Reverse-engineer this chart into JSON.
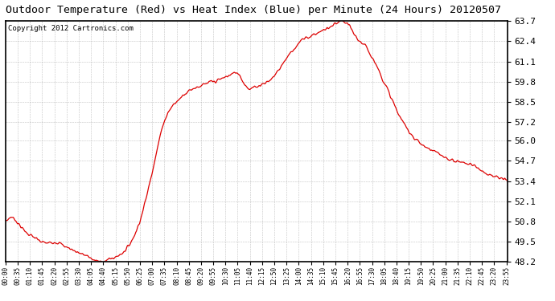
{
  "title": "Outdoor Temperature (Red) vs Heat Index (Blue) per Minute (24 Hours) 20120507",
  "copyright": "Copyright 2012 Cartronics.com",
  "yticks": [
    48.2,
    49.5,
    50.8,
    52.1,
    53.4,
    54.7,
    56.0,
    57.2,
    58.5,
    59.8,
    61.1,
    62.4,
    63.7
  ],
  "ymin": 48.2,
  "ymax": 63.7,
  "line_color": "#dd0000",
  "bg_color": "#ffffff",
  "grid_color": "#999999",
  "title_fontsize": 9.5,
  "copyright_fontsize": 6.5,
  "ytick_fontsize": 8,
  "xtick_fontsize": 5.5,
  "ctrl_points": [
    [
      0,
      50.8
    ],
    [
      15,
      51.1
    ],
    [
      25,
      51.0
    ],
    [
      35,
      50.7
    ],
    [
      50,
      50.3
    ],
    [
      65,
      50.0
    ],
    [
      80,
      49.8
    ],
    [
      100,
      49.5
    ],
    [
      120,
      49.4
    ],
    [
      140,
      49.5
    ],
    [
      155,
      49.4
    ],
    [
      170,
      49.2
    ],
    [
      190,
      49.0
    ],
    [
      210,
      48.8
    ],
    [
      240,
      48.5
    ],
    [
      255,
      48.3
    ],
    [
      265,
      48.25
    ],
    [
      270,
      48.2
    ],
    [
      280,
      48.25
    ],
    [
      290,
      48.3
    ],
    [
      300,
      48.4
    ],
    [
      315,
      48.5
    ],
    [
      330,
      48.7
    ],
    [
      345,
      49.0
    ],
    [
      360,
      49.5
    ],
    [
      375,
      50.2
    ],
    [
      390,
      51.2
    ],
    [
      405,
      52.5
    ],
    [
      420,
      54.0
    ],
    [
      435,
      55.5
    ],
    [
      450,
      57.0
    ],
    [
      465,
      57.8
    ],
    [
      480,
      58.3
    ],
    [
      495,
      58.6
    ],
    [
      510,
      59.0
    ],
    [
      525,
      59.2
    ],
    [
      540,
      59.4
    ],
    [
      555,
      59.5
    ],
    [
      570,
      59.6
    ],
    [
      580,
      59.7
    ],
    [
      590,
      59.8
    ],
    [
      600,
      59.8
    ],
    [
      610,
      59.9
    ],
    [
      620,
      60.0
    ],
    [
      630,
      60.1
    ],
    [
      640,
      60.2
    ],
    [
      650,
      60.3
    ],
    [
      660,
      60.4
    ],
    [
      670,
      60.3
    ],
    [
      680,
      59.8
    ],
    [
      690,
      59.5
    ],
    [
      700,
      59.3
    ],
    [
      710,
      59.4
    ],
    [
      720,
      59.5
    ],
    [
      730,
      59.6
    ],
    [
      740,
      59.7
    ],
    [
      750,
      59.8
    ],
    [
      760,
      59.9
    ],
    [
      770,
      60.2
    ],
    [
      790,
      60.8
    ],
    [
      810,
      61.5
    ],
    [
      830,
      62.0
    ],
    [
      850,
      62.5
    ],
    [
      870,
      62.7
    ],
    [
      890,
      62.9
    ],
    [
      910,
      63.1
    ],
    [
      930,
      63.3
    ],
    [
      945,
      63.5
    ],
    [
      955,
      63.6
    ],
    [
      962,
      63.7
    ],
    [
      970,
      63.65
    ],
    [
      980,
      63.5
    ],
    [
      990,
      63.2
    ],
    [
      1000,
      62.8
    ],
    [
      1010,
      62.5
    ],
    [
      1020,
      62.3
    ],
    [
      1030,
      62.1
    ],
    [
      1040,
      61.8
    ],
    [
      1055,
      61.2
    ],
    [
      1070,
      60.5
    ],
    [
      1090,
      59.5
    ],
    [
      1110,
      58.5
    ],
    [
      1130,
      57.5
    ],
    [
      1150,
      56.8
    ],
    [
      1170,
      56.2
    ],
    [
      1190,
      55.8
    ],
    [
      1210,
      55.5
    ],
    [
      1230,
      55.3
    ],
    [
      1250,
      55.0
    ],
    [
      1270,
      54.8
    ],
    [
      1290,
      54.7
    ],
    [
      1310,
      54.6
    ],
    [
      1330,
      54.5
    ],
    [
      1350,
      54.3
    ],
    [
      1370,
      54.0
    ],
    [
      1390,
      53.8
    ],
    [
      1410,
      53.6
    ],
    [
      1430,
      53.5
    ],
    [
      1439,
      53.4
    ]
  ]
}
